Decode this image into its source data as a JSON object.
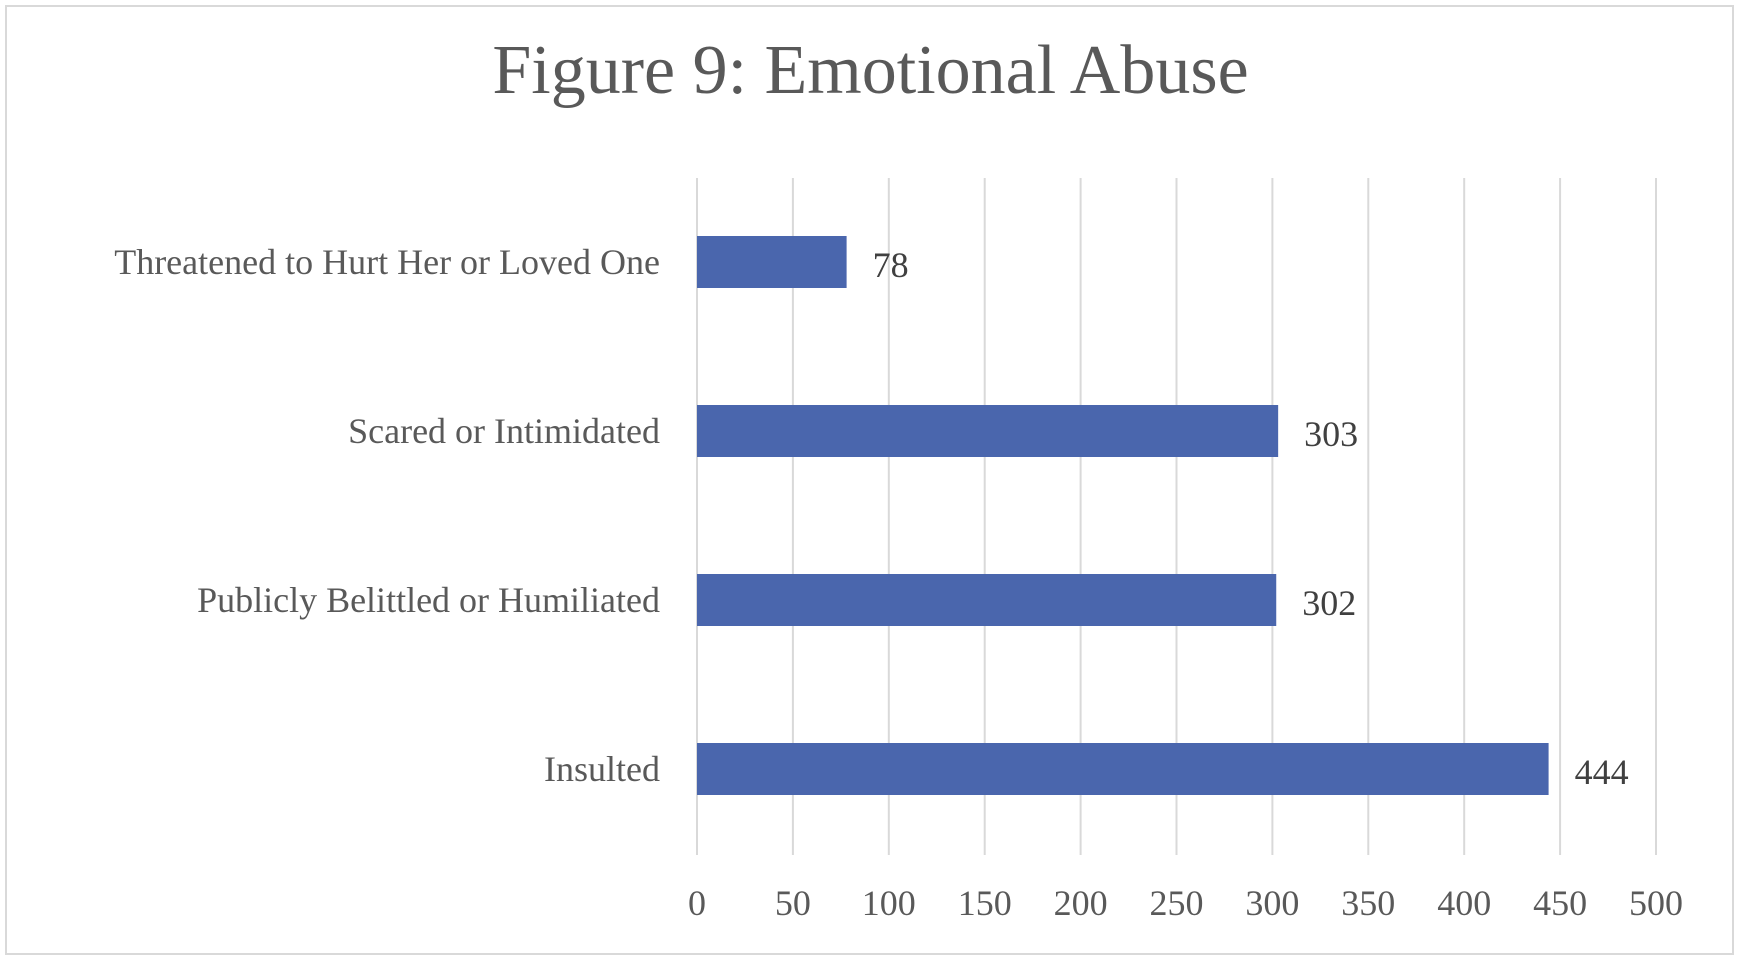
{
  "chart_data": {
    "type": "bar",
    "orientation": "horizontal",
    "title": "Figure 9: Emotional Abuse",
    "categories": [
      "Insulted",
      "Publicly Belittled or Humiliated",
      "Scared or Intimidated",
      "Threatened to Hurt Her or Loved One"
    ],
    "values": [
      444,
      302,
      303,
      78
    ],
    "xlim": [
      0,
      500
    ],
    "xticks": [
      0,
      50,
      100,
      150,
      200,
      250,
      300,
      350,
      400,
      450,
      500
    ],
    "grid": "vertical",
    "data_labels": true,
    "legend": "none",
    "bar_color": "#4a66ad",
    "grid_color": "#d9d9d9"
  }
}
